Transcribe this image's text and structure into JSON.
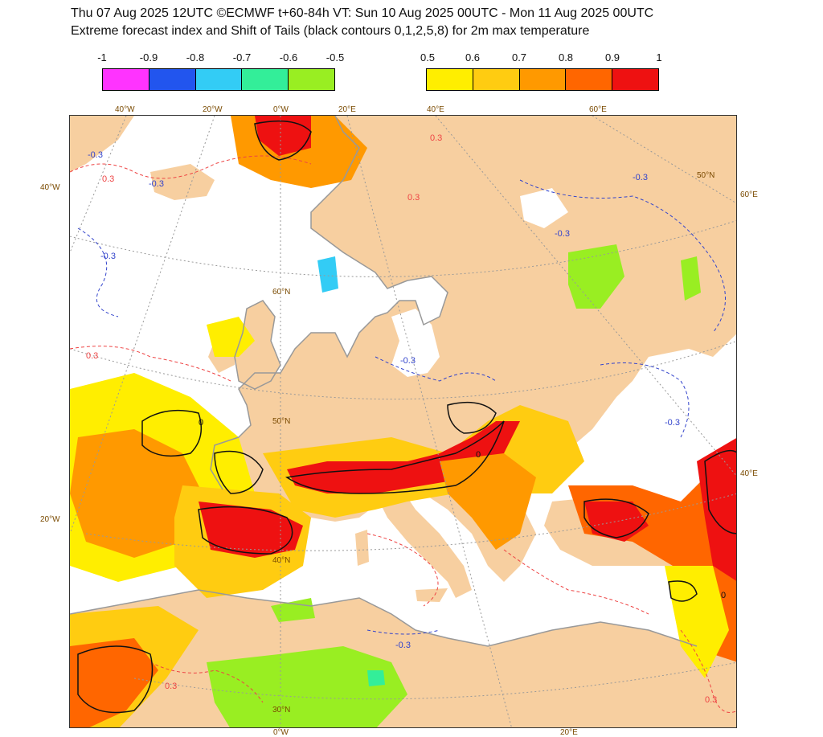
{
  "header": {
    "line1": "Thu 07 Aug 2025 12UTC ©ECMWF t+60-84h  VT: Sun 10 Aug 2025 00UTC - Mon 11 Aug 2025 00UTC",
    "line2": "Extreme forecast index and Shift of Tails (black contours 0,1,2,5,8) for 2m max temperature"
  },
  "legend": {
    "negative": {
      "ticks": [
        "-1",
        "-0.9",
        "-0.8",
        "-0.7",
        "-0.6",
        "-0.5"
      ],
      "colors": [
        "#ff33ff",
        "#2255ee",
        "#33ccf5",
        "#33ee99",
        "#99ee22"
      ]
    },
    "positive": {
      "ticks": [
        "0.5",
        "0.6",
        "0.7",
        "0.8",
        "0.9",
        "1"
      ],
      "colors": [
        "#ffee00",
        "#ffcc11",
        "#ff9900",
        "#ff6600",
        "#ee1111"
      ]
    }
  },
  "map": {
    "colors": {
      "land": "#f7cfa0",
      "sea": "#ffffff",
      "graticule": "#999999",
      "coast": "#999999",
      "neg_contour": "#3344cc",
      "pos_contour": "#ee4444",
      "sot_contour": "#111111"
    },
    "graticule_labels": {
      "top": [
        "40°W",
        "20°W",
        "0°W",
        "20°E",
        "40°E",
        "60°E"
      ],
      "left": [
        "40°W",
        "20°W"
      ],
      "right": [
        "60°E",
        "40°E"
      ],
      "bottom": [
        "0°W",
        "20°E"
      ],
      "lat": [
        "60°N",
        "50°N",
        "40°N",
        "30°N",
        "50°N"
      ]
    },
    "contour_labels": {
      "minus03": "-0.3",
      "plus03": "0.3",
      "zero": "0"
    }
  }
}
